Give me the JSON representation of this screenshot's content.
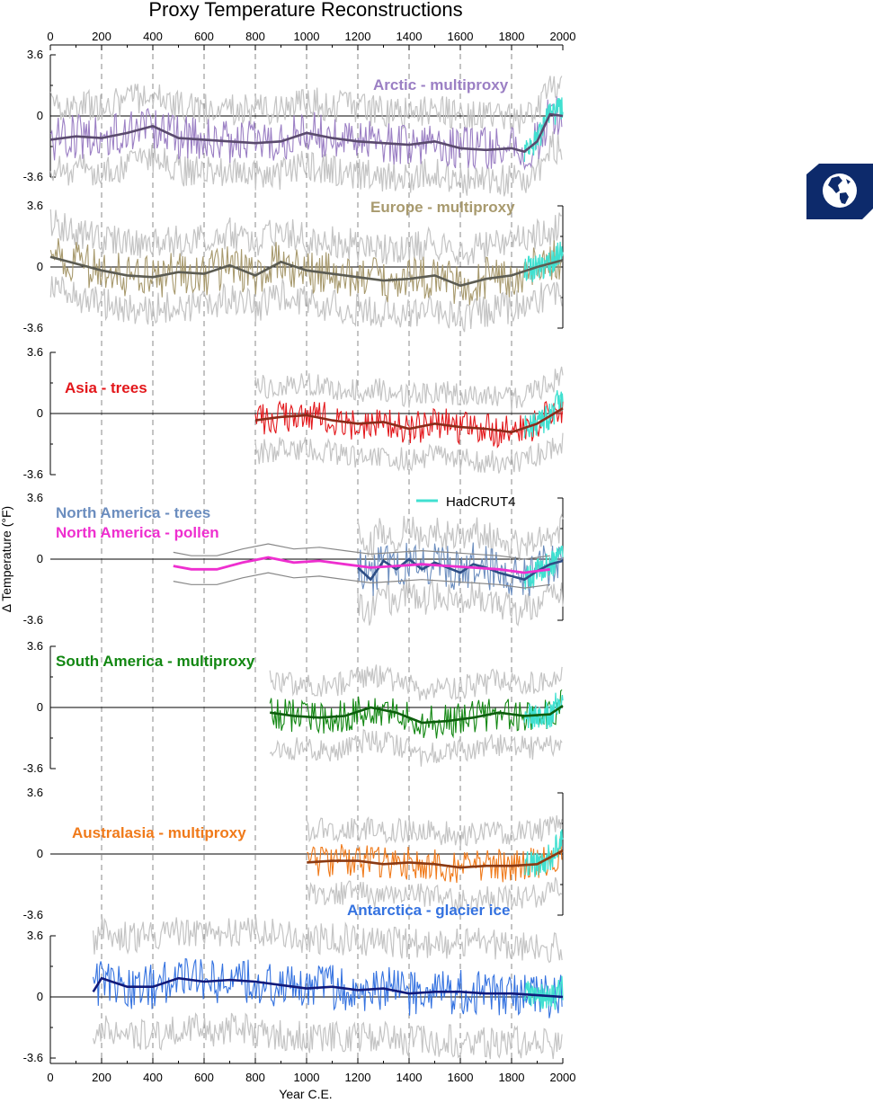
{
  "title": "Proxy Temperature Reconstructions",
  "colors": {
    "hadcrut": "#40e0d0",
    "noise": "#c4c4c4",
    "badge": "#0d2a6b"
  },
  "legend": {
    "label": "HadCRUT4"
  },
  "icon": "globe-icon",
  "chart_data": {
    "type": "line",
    "xlabel": "Year C.E.",
    "ylabel": "Δ Temperature (°F)",
    "xlim": [
      0,
      2000
    ],
    "xticks": [
      "0",
      "200",
      "400",
      "600",
      "800",
      "1000",
      "1200",
      "1400",
      "1600",
      "1800",
      "2000"
    ],
    "ylim": [
      -3.6,
      3.6
    ],
    "ytick_labels": [
      "3.6",
      "0",
      "-3.6"
    ],
    "grid": "dashed vertical lines every 200 years",
    "panels": [
      {
        "id": "arctic",
        "label": "Arctic - multiproxy",
        "color": "#9b7fc4",
        "mean_color": "#5a4a6e",
        "start": 1,
        "end": 2000,
        "proxy_offset": -1.2,
        "mean": [
          [
            0,
            -1.4
          ],
          [
            100,
            -1.2
          ],
          [
            200,
            -1.3
          ],
          [
            300,
            -1.0
          ],
          [
            400,
            -0.6
          ],
          [
            500,
            -1.3
          ],
          [
            600,
            -1.4
          ],
          [
            700,
            -1.5
          ],
          [
            800,
            -1.6
          ],
          [
            900,
            -1.5
          ],
          [
            1000,
            -1.0
          ],
          [
            1100,
            -1.3
          ],
          [
            1200,
            -1.5
          ],
          [
            1300,
            -1.6
          ],
          [
            1400,
            -1.7
          ],
          [
            1500,
            -1.5
          ],
          [
            1600,
            -1.9
          ],
          [
            1700,
            -2.0
          ],
          [
            1800,
            -1.9
          ],
          [
            1850,
            -2.1
          ],
          [
            1900,
            -1.5
          ],
          [
            1950,
            0.1
          ],
          [
            2000,
            0.0
          ]
        ]
      },
      {
        "id": "europe",
        "label": "Europe - multiproxy",
        "color": "#a89a6e",
        "mean_color": "#5c5c52",
        "start": 1,
        "end": 2000,
        "proxy_offset": 0.1,
        "mean": [
          [
            0,
            0.6
          ],
          [
            100,
            0.2
          ],
          [
            200,
            -0.2
          ],
          [
            300,
            -0.5
          ],
          [
            400,
            -0.6
          ],
          [
            500,
            -0.3
          ],
          [
            600,
            -0.4
          ],
          [
            700,
            0.1
          ],
          [
            800,
            -0.5
          ],
          [
            900,
            0.3
          ],
          [
            1000,
            -0.2
          ],
          [
            1100,
            -0.4
          ],
          [
            1200,
            -0.6
          ],
          [
            1300,
            -0.8
          ],
          [
            1400,
            -0.7
          ],
          [
            1500,
            -0.5
          ],
          [
            1600,
            -1.1
          ],
          [
            1700,
            -0.7
          ],
          [
            1800,
            -0.5
          ],
          [
            1900,
            0.0
          ],
          [
            2000,
            0.4
          ]
        ]
      },
      {
        "id": "asia",
        "label": "Asia - trees",
        "color": "#e3171b",
        "mean_color": "#8b2b1a",
        "start": 800,
        "end": 2000,
        "proxy_offset": -0.3,
        "mean": [
          [
            800,
            -0.4
          ],
          [
            900,
            -0.2
          ],
          [
            1000,
            -0.1
          ],
          [
            1100,
            -0.4
          ],
          [
            1200,
            -0.6
          ],
          [
            1300,
            -0.5
          ],
          [
            1400,
            -0.9
          ],
          [
            1500,
            -0.6
          ],
          [
            1600,
            -0.8
          ],
          [
            1700,
            -0.9
          ],
          [
            1800,
            -1.1
          ],
          [
            1900,
            -0.6
          ],
          [
            2000,
            0.3
          ]
        ]
      },
      {
        "id": "namerica_trees",
        "label": "North America - trees",
        "color": "#6c8ebf",
        "mean_color": "#2d4d85",
        "start": 1200,
        "end": 2000,
        "proxy_offset": -0.4,
        "mean": [
          [
            1200,
            -0.5
          ],
          [
            1250,
            -1.2
          ],
          [
            1300,
            -0.1
          ],
          [
            1350,
            -0.6
          ],
          [
            1400,
            0.0
          ],
          [
            1450,
            -0.6
          ],
          [
            1500,
            -0.2
          ],
          [
            1550,
            -0.5
          ],
          [
            1600,
            -0.8
          ],
          [
            1650,
            -0.3
          ],
          [
            1700,
            -0.5
          ],
          [
            1750,
            -0.8
          ],
          [
            1800,
            -1.0
          ],
          [
            1850,
            -1.2
          ],
          [
            1900,
            -0.7
          ],
          [
            1950,
            -0.3
          ],
          [
            2000,
            -0.1
          ]
        ]
      },
      {
        "id": "namerica_pollen",
        "label": "North America - pollen",
        "color": "#ee2fcf",
        "start": 480,
        "end": 1950,
        "mean": [
          [
            480,
            -0.4
          ],
          [
            550,
            -0.6
          ],
          [
            650,
            -0.6
          ],
          [
            750,
            -0.2
          ],
          [
            850,
            0.1
          ],
          [
            950,
            -0.2
          ],
          [
            1050,
            -0.1
          ],
          [
            1150,
            -0.3
          ],
          [
            1250,
            -0.5
          ],
          [
            1350,
            -0.4
          ],
          [
            1450,
            -0.3
          ],
          [
            1550,
            -0.4
          ],
          [
            1650,
            -0.5
          ],
          [
            1750,
            -0.6
          ],
          [
            1850,
            -0.8
          ],
          [
            1950,
            -0.6
          ]
        ]
      },
      {
        "id": "samerica",
        "label": "South America - multiproxy",
        "color": "#128712",
        "mean_color": "#0d5e0d",
        "start": 857,
        "end": 2000,
        "proxy_offset": -0.4,
        "mean": [
          [
            857,
            -0.3
          ],
          [
            950,
            -0.5
          ],
          [
            1050,
            -0.6
          ],
          [
            1150,
            -0.5
          ],
          [
            1250,
            0.0
          ],
          [
            1350,
            -0.3
          ],
          [
            1450,
            -0.9
          ],
          [
            1550,
            -0.8
          ],
          [
            1650,
            -0.6
          ],
          [
            1750,
            -0.3
          ],
          [
            1850,
            -0.5
          ],
          [
            1950,
            -0.4
          ],
          [
            2000,
            0.1
          ]
        ]
      },
      {
        "id": "australasia",
        "label": "Australasia - multiproxy",
        "color": "#f07a1a",
        "mean_color": "#8b3a12",
        "start": 1001,
        "end": 2000,
        "proxy_offset": -0.4,
        "mean": [
          [
            1001,
            -0.5
          ],
          [
            1100,
            -0.4
          ],
          [
            1200,
            -0.4
          ],
          [
            1300,
            -0.6
          ],
          [
            1400,
            -0.5
          ],
          [
            1500,
            -0.6
          ],
          [
            1600,
            -0.8
          ],
          [
            1700,
            -0.7
          ],
          [
            1800,
            -0.7
          ],
          [
            1900,
            -0.6
          ],
          [
            2000,
            0.2
          ]
        ]
      },
      {
        "id": "antarctica",
        "label": "Antarctica - glacier ice",
        "color": "#3472e0",
        "mean_color": "#101a7a",
        "start": 167,
        "end": 2000,
        "proxy_offset": 0.3,
        "mean": [
          [
            167,
            0.3
          ],
          [
            200,
            1.1
          ],
          [
            300,
            0.6
          ],
          [
            400,
            0.6
          ],
          [
            500,
            1.1
          ],
          [
            600,
            0.9
          ],
          [
            700,
            1.0
          ],
          [
            800,
            0.9
          ],
          [
            900,
            0.7
          ],
          [
            1000,
            0.5
          ],
          [
            1100,
            0.6
          ],
          [
            1200,
            0.4
          ],
          [
            1300,
            0.5
          ],
          [
            1400,
            0.2
          ],
          [
            1500,
            0.3
          ],
          [
            1600,
            0.3
          ],
          [
            1700,
            0.2
          ],
          [
            1800,
            0.2
          ],
          [
            1900,
            0.1
          ],
          [
            2000,
            0.0
          ]
        ]
      }
    ]
  }
}
